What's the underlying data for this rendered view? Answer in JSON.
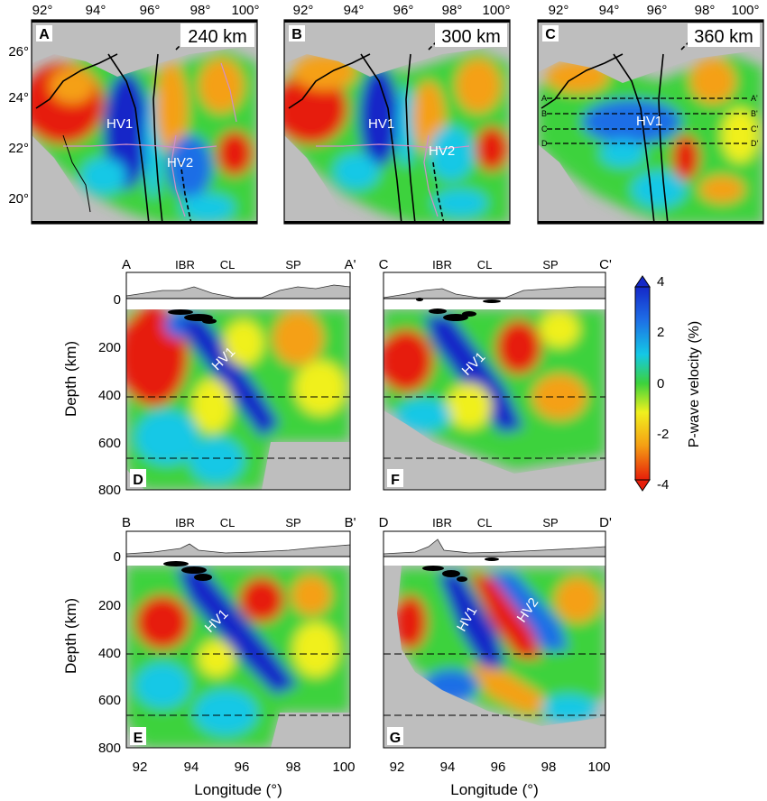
{
  "map_panels": [
    {
      "letter": "A",
      "depth": "240 km",
      "hv_labels": [
        "HV1",
        "HV2"
      ]
    },
    {
      "letter": "B",
      "depth": "300 km",
      "hv_labels": [
        "HV1",
        "HV2"
      ]
    },
    {
      "letter": "C",
      "depth": "360 km",
      "hv_labels": [
        "HV1"
      ],
      "profile_markers": [
        [
          "A",
          "A'"
        ],
        [
          "B",
          "B'"
        ],
        [
          "C",
          "C'"
        ],
        [
          "D",
          "D'"
        ]
      ]
    }
  ],
  "map_axes": {
    "lon_ticks": [
      "92°",
      "94°",
      "96°",
      "98°",
      "100°"
    ],
    "lat_ticks": [
      "26°",
      "24°",
      "22°",
      "20°"
    ]
  },
  "sections": [
    {
      "letter": "D",
      "start": "A",
      "end": "A'",
      "hv_labels": [
        "HV1"
      ]
    },
    {
      "letter": "F",
      "start": "C",
      "end": "C'",
      "hv_labels": [
        "HV1"
      ]
    },
    {
      "letter": "E",
      "start": "B",
      "end": "B'",
      "hv_labels": [
        "HV1"
      ]
    },
    {
      "letter": "G",
      "start": "D",
      "end": "D'",
      "hv_labels": [
        "HV1",
        "HV2"
      ]
    }
  ],
  "section_axes": {
    "region_labels": [
      "IBR",
      "CL",
      "SP"
    ],
    "depth_ticks": [
      "0",
      "200",
      "400",
      "600",
      "800"
    ],
    "lon_ticks": [
      "92",
      "94",
      "96",
      "98",
      "100"
    ],
    "ylabel": "Depth (km)",
    "xlabel": "Longitude (°)"
  },
  "colorbar": {
    "label": "P-wave velocity (%)",
    "ticks": [
      "4",
      "2",
      "0",
      "-2",
      "-4"
    ],
    "colors": [
      "#1428c8",
      "#1e6ee6",
      "#14c8e6",
      "#3cd23c",
      "#f0f01e",
      "#f5a014",
      "#e61e0a"
    ]
  }
}
